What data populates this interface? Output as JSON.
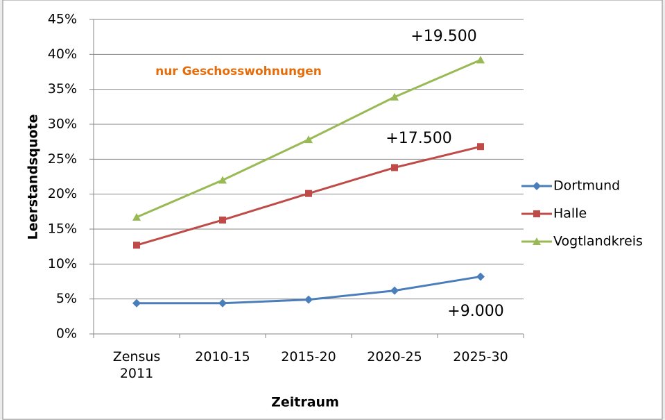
{
  "chart_data": {
    "type": "line",
    "categories": [
      "Zensus 2011",
      "2010-15",
      "2015-20",
      "2020-25",
      "2025-30"
    ],
    "series": [
      {
        "name": "Dortmund",
        "color": "#4a7ebb",
        "marker": "diamond",
        "values": [
          4.4,
          4.4,
          4.9,
          6.2,
          8.2
        ]
      },
      {
        "name": "Halle",
        "color": "#be4b48",
        "marker": "square",
        "values": [
          12.7,
          16.3,
          20.1,
          23.8,
          26.8
        ]
      },
      {
        "name": "Vogtlandkreis",
        "color": "#98b954",
        "marker": "triangle",
        "values": [
          16.7,
          22.0,
          27.8,
          33.9,
          39.2
        ]
      }
    ],
    "ylim": [
      0,
      45
    ],
    "yticks": [
      {
        "value": 0,
        "label": "0%"
      },
      {
        "value": 5,
        "label": "5%"
      },
      {
        "value": 10,
        "label": "10%"
      },
      {
        "value": 15,
        "label": "15%"
      },
      {
        "value": 20,
        "label": "20%"
      },
      {
        "value": 25,
        "label": "25%"
      },
      {
        "value": 30,
        "label": "30%"
      },
      {
        "value": 35,
        "label": "35%"
      },
      {
        "value": 40,
        "label": "40%"
      },
      {
        "value": 45,
        "label": "45%"
      }
    ],
    "grid": true,
    "x_label": "Zeitraum",
    "y_label": "Leerstandsquote",
    "legend": "right",
    "annotations": [
      {
        "text": "+19.500",
        "color": "#000000"
      },
      {
        "text": "+17.500",
        "color": "#000000"
      },
      {
        "text": "+9.000",
        "color": "#000000"
      },
      {
        "text": "nur Geschosswohnungen",
        "color": "#e46c0a"
      }
    ]
  }
}
